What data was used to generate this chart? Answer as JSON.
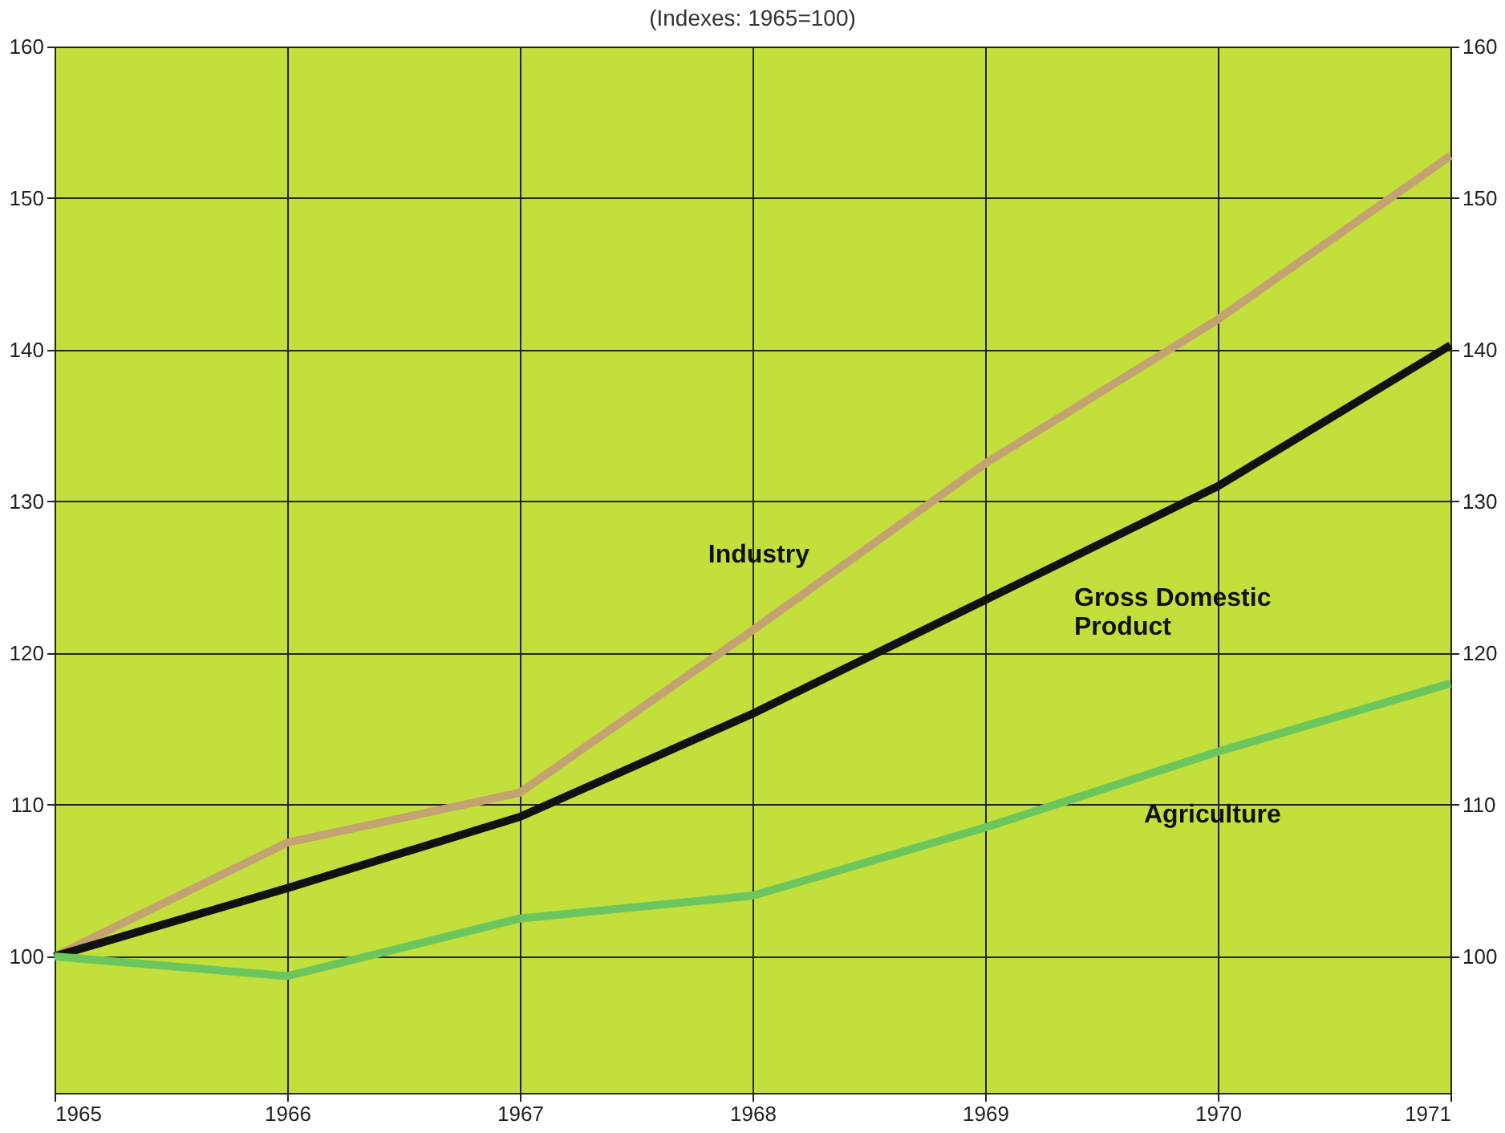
{
  "chart_data": {
    "type": "line",
    "subtitle": "(Indexes: 1965=100)",
    "x": [
      1965,
      1966,
      1967,
      1968,
      1969,
      1970,
      1971
    ],
    "series": [
      {
        "name": "Industry",
        "color": "#c4a272",
        "values": [
          100,
          107.5,
          110.8,
          121.5,
          132.5,
          142,
          152.8
        ]
      },
      {
        "name": "Gross Domestic Product",
        "color": "#111111",
        "values": [
          100,
          104.5,
          109.2,
          116,
          123.5,
          131,
          140.3
        ]
      },
      {
        "name": "Agriculture",
        "color": "#6cc65e",
        "values": [
          100,
          98.7,
          102.5,
          104,
          108.5,
          113.5,
          118
        ]
      }
    ],
    "xlim": [
      1965,
      1971
    ],
    "xticks": [
      1965,
      1966,
      1967,
      1968,
      1969,
      1970,
      1971
    ],
    "ylim": [
      91,
      160
    ],
    "yticks": [
      100,
      110,
      120,
      130,
      140,
      150,
      160
    ],
    "y2lim": [
      91,
      160
    ],
    "y2ticks": [
      100,
      110,
      120,
      130,
      140,
      150,
      160
    ],
    "grid": true,
    "legend": false,
    "marker": "none",
    "line_style": "solid"
  }
}
